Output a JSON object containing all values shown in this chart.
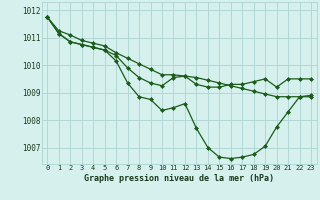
{
  "title": "Graphe pression niveau de la mer (hPa)",
  "background_color": "#d6f0ee",
  "grid_color": "#b0d8d4",
  "line_color": "#1a5c1a",
  "xlim": [
    -0.5,
    23.5
  ],
  "ylim": [
    1006.4,
    1012.3
  ],
  "yticks": [
    1007,
    1008,
    1009,
    1010,
    1011,
    1012
  ],
  "xticks": [
    0,
    1,
    2,
    3,
    4,
    5,
    6,
    7,
    8,
    9,
    10,
    11,
    12,
    13,
    14,
    15,
    16,
    17,
    18,
    19,
    20,
    21,
    22,
    23
  ],
  "series": [
    [
      1011.75,
      1011.15,
      1010.85,
      1010.75,
      1010.65,
      1010.55,
      1010.15,
      1009.35,
      1008.85,
      1008.75,
      1008.35,
      1008.45,
      1008.6,
      1007.7,
      1007.0,
      1006.65,
      1006.6,
      1006.65,
      1006.75,
      1007.05,
      1007.75,
      1008.3,
      1008.85,
      1008.85
    ],
    [
      1011.75,
      1011.15,
      1010.85,
      1010.75,
      1010.65,
      1010.55,
      1010.35,
      1009.9,
      1009.55,
      1009.35,
      1009.25,
      1009.55,
      1009.6,
      1009.3,
      1009.2,
      1009.2,
      1009.3,
      1009.3,
      1009.4,
      1009.5,
      1009.2,
      1009.5,
      1009.5,
      1009.5
    ],
    [
      1011.75,
      1011.25,
      1011.1,
      1010.9,
      1010.8,
      1010.7,
      1010.45,
      1010.25,
      1010.05,
      1009.85,
      1009.65,
      1009.65,
      1009.6,
      1009.55,
      1009.45,
      1009.35,
      1009.25,
      1009.15,
      1009.05,
      1008.95,
      1008.85,
      1008.85,
      1008.85,
      1008.9
    ]
  ]
}
